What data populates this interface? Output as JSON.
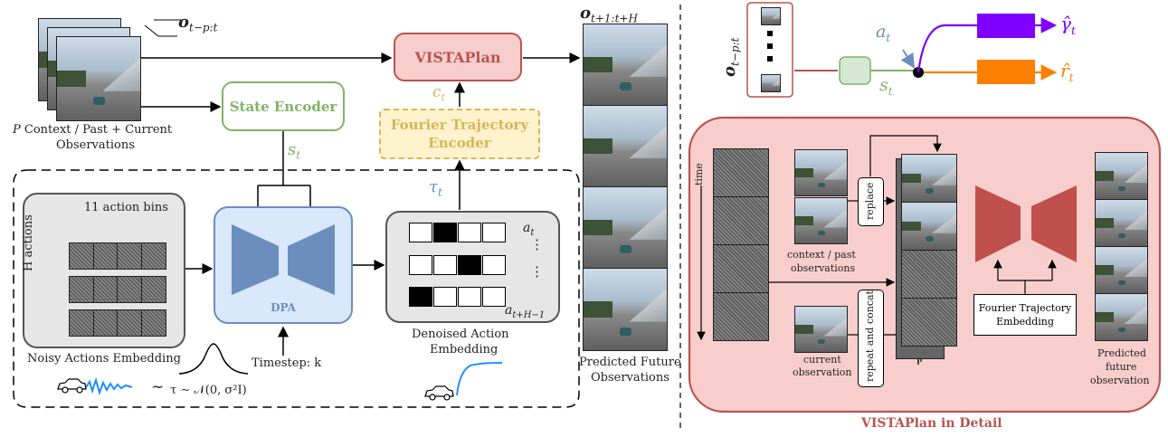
{
  "labels": {
    "obs_in": "o",
    "obs_in_sub": "t−p:t",
    "obs_out": "o",
    "obs_out_sub": "t+1:t+H",
    "context_p": "P",
    "context_text": "Context / Past + Current",
    "context_text2": "Observations",
    "state_encoder": "State Encoder",
    "vistaplan": "VISTAPlan",
    "fourier_line1": "Fourier Trajectory",
    "fourier_line2": "Encoder",
    "c_t": "c",
    "c_t_sub": "t",
    "s_t": "s",
    "s_t_sub": "t",
    "tau_t": "τ",
    "tau_t_sub": "t",
    "action_bins": "11 action bins",
    "h_actions": "H actions",
    "dpa": "DPA",
    "timestep": "Timestep: k",
    "noisy_embedding": "Noisy Actions Embedding",
    "tau_dist": "τ ∼ 𝒩(0, σ²I)",
    "tilde": "∼",
    "denoised_line1": "Denoised Action",
    "denoised_line2": "Embedding",
    "a_t": "a",
    "a_t_sub": "t",
    "a_tH": "a",
    "a_tH_sub": "t+H−1",
    "vdots": "⋮",
    "pred_line1": "Predicted Future",
    "pred_line2": "Observations",
    "right_obs": "o",
    "right_obs_sub": "t−p:t",
    "right_a": "a",
    "right_a_sub": "t",
    "right_s": "s",
    "right_s_sub": "t",
    "gamma_hat": "γ̂",
    "gamma_sub": "t",
    "r_hat": "r̂",
    "r_sub": "t",
    "time": "time",
    "context_past1": "context / past",
    "context_past2": "observations",
    "current1": "current",
    "current2": "observation",
    "replace": "replace",
    "repeat_concat": "repeat and concat",
    "fourier_emb1": "Fourier Trajectory",
    "fourier_emb2": "Embedding",
    "pred_future1": "Predicted",
    "pred_future2": "future",
    "pred_future3": "observation",
    "detail_title": "VISTAPlan in Detail"
  },
  "action_rows": [
    {
      "on": [
        1
      ]
    },
    {
      "on": [
        2
      ]
    },
    {
      "on": [
        0
      ]
    }
  ],
  "colors": {
    "state_encoder": "#82b366",
    "vistaplan": "#b85450",
    "fourier": "#d6b656",
    "dpa": "#6c8ebf",
    "purple": "#7f00ff",
    "orange": "#ff8000",
    "detail_bg": "#f8cecc",
    "detail_border": "#b85450",
    "unet": "#c0504d",
    "blue_curve": "#1e90ff"
  },
  "icons": [
    "car-icon",
    "noise-wave-icon",
    "gaussian-curve-icon",
    "sigmoid-curve-icon"
  ]
}
